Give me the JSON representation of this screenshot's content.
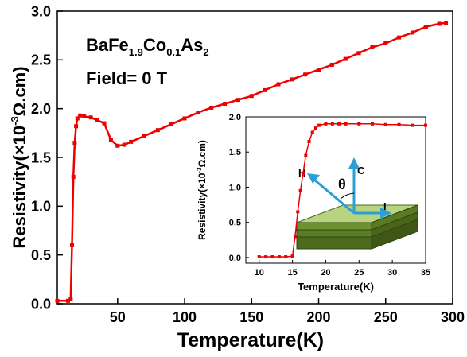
{
  "chart_data": [
    {
      "type": "line",
      "xlabel": "Temperature(K)",
      "ylabel_main": "Resistivity(×10",
      "ylabel_exp": "-3",
      "ylabel_unit": "Ω.cm)",
      "xlim": [
        5,
        300
      ],
      "ylim": [
        0,
        3.0
      ],
      "xticks": [
        50,
        100,
        150,
        200,
        250,
        300
      ],
      "xtick_labels": [
        "50",
        "100",
        "150",
        "200",
        "250",
        "300"
      ],
      "yticks": [
        0.0,
        0.5,
        1.0,
        1.5,
        2.0,
        2.5,
        3.0
      ],
      "ytick_labels": [
        "0.0",
        "0.5",
        "1.0",
        "1.5",
        "2.0",
        "2.5",
        "3.0"
      ],
      "series": [
        {
          "color": "#ee0000",
          "x": [
            5,
            13,
            15,
            16,
            17,
            18,
            19,
            20,
            22,
            25,
            30,
            35,
            40,
            45,
            50,
            55,
            60,
            70,
            80,
            90,
            100,
            110,
            120,
            130,
            140,
            150,
            160,
            170,
            180,
            190,
            200,
            210,
            220,
            230,
            240,
            250,
            260,
            270,
            280,
            290,
            295
          ],
          "y": [
            0.03,
            0.03,
            0.05,
            0.6,
            1.3,
            1.65,
            1.82,
            1.9,
            1.93,
            1.92,
            1.91,
            1.88,
            1.85,
            1.68,
            1.62,
            1.63,
            1.66,
            1.72,
            1.78,
            1.84,
            1.9,
            1.96,
            2.01,
            2.05,
            2.09,
            2.13,
            2.19,
            2.25,
            2.3,
            2.35,
            2.4,
            2.45,
            2.51,
            2.57,
            2.63,
            2.67,
            2.73,
            2.78,
            2.84,
            2.87,
            2.88
          ]
        }
      ],
      "annotations": {
        "compound_base": "BaFe",
        "compound_sub1": "1.9",
        "compound_mid": "Co",
        "compound_sub2": "0.1",
        "compound_end": "As",
        "compound_sub3": "2",
        "field_text": "Field= 0 T"
      }
    },
    {
      "type": "line",
      "role": "inset",
      "xlabel": "Temperature(K)",
      "ylabel_main": "Resistivity(×10",
      "ylabel_exp": "-3",
      "ylabel_unit": "Ω.cm)",
      "xlim": [
        8,
        35
      ],
      "ylim": [
        -0.08,
        2.0
      ],
      "xticks": [
        10,
        15,
        20,
        25,
        30,
        35
      ],
      "xtick_labels": [
        "10",
        "15",
        "20",
        "25",
        "30",
        "35"
      ],
      "yticks": [
        0.0,
        0.5,
        1.0,
        1.5,
        2.0
      ],
      "ytick_labels": [
        "0.0",
        "0.5",
        "1.0",
        "1.5",
        "2.0"
      ],
      "series": [
        {
          "color": "#ee0000",
          "x": [
            10,
            11,
            12,
            13,
            14,
            15,
            15.4,
            15.8,
            16.2,
            16.6,
            17,
            17.5,
            18,
            18.5,
            19,
            20,
            21,
            22,
            23,
            25,
            27,
            29,
            31,
            33,
            35
          ],
          "y": [
            0.01,
            0.01,
            0.01,
            0.01,
            0.01,
            0.02,
            0.3,
            0.65,
            0.95,
            1.2,
            1.45,
            1.65,
            1.78,
            1.84,
            1.88,
            1.9,
            1.9,
            1.9,
            1.9,
            1.9,
            1.9,
            1.89,
            1.89,
            1.88,
            1.88
          ]
        }
      ],
      "diagram_labels": {
        "h": "H",
        "c": "C",
        "theta": "θ",
        "i": "I"
      }
    }
  ]
}
